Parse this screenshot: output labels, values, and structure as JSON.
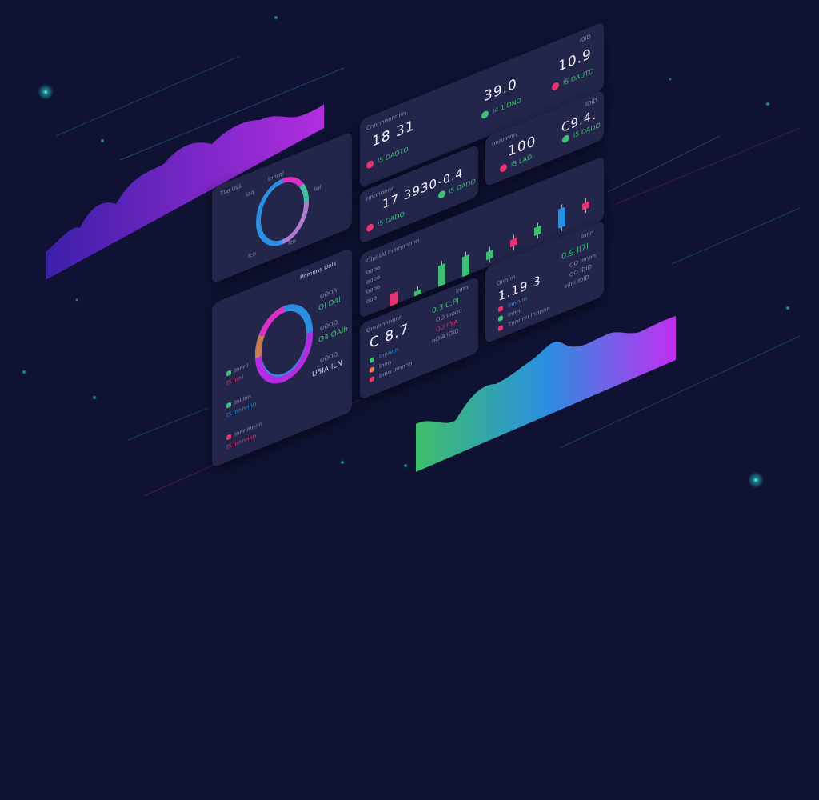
{
  "colors": {
    "background": "#0f1233",
    "panel": "#23254a",
    "green": "#3fbf78",
    "pink": "#e9356f",
    "blue": "#2a8fe0",
    "purple": "#b12ee0"
  },
  "donut_panel": {
    "title": "Tlle ULL",
    "caption": "lnnrol",
    "labels": [
      "lao",
      "lol",
      "lco",
      "lzo"
    ]
  },
  "donut_panel2": {
    "title": "Pnmnns Unls",
    "right_labels": [
      "OOOR",
      "Ol D4l",
      "OOOO",
      "O4 OAlh",
      "OOOO",
      "U5lA lLN"
    ],
    "legend": [
      {
        "label": "lnnnl",
        "value": "l5 lnnl",
        "color": "#3fbf78",
        "value_color": "#e9356f"
      },
      {
        "label": "lnlllnn",
        "value": "l5 lnnnnnn",
        "color": "#3fbf78",
        "value_color": "#2a8fe0"
      },
      {
        "label": "lnnnlnnnn",
        "value": "l5 lnnnnnn",
        "color": "#e9356f",
        "value_color": "#e9356f"
      }
    ]
  },
  "kpi_top": {
    "label": "Cnnnnnnnnnn",
    "value1": "18 31",
    "sub1": "l5 DADTO",
    "value2": "39.0",
    "sub2": "l4 1 DNO",
    "value3": "10.9",
    "sub3": "l5 DAUTO",
    "corner": "l0lD"
  },
  "kpi_a": {
    "label": "nnnnnnnn",
    "value1": "17 3930",
    "sub1": "l5 DADO",
    "value2": "-0.4",
    "sub2": "l5 DADO"
  },
  "kpi_b": {
    "label": "nnnnnnn",
    "value1": "100",
    "sub1": "l5 LAD",
    "value2": "C9.4.",
    "sub2": "l5 DADO",
    "corner": "lDlD"
  },
  "candle_panel": {
    "title": "Olnl lAl lnlnnnnnnn",
    "axis": [
      "oooo",
      "oooo",
      "oooo",
      "ooo"
    ],
    "candles": [
      {
        "o": 40,
        "c": 75,
        "color": "#e9356f"
      },
      {
        "o": 52,
        "c": 58,
        "color": "#3fbf78"
      },
      {
        "o": 60,
        "c": 95,
        "color": "#3fbf78"
      },
      {
        "o": 62,
        "c": 92,
        "color": "#3fbf78"
      },
      {
        "o": 72,
        "c": 82,
        "color": "#3fbf78"
      },
      {
        "o": 78,
        "c": 88,
        "color": "#e9356f"
      },
      {
        "o": 82,
        "c": 92,
        "color": "#3fbf78"
      },
      {
        "o": 88,
        "c": 112,
        "color": "#2a8fe0"
      },
      {
        "o": 96,
        "c": 104,
        "color": "#e9356f"
      }
    ]
  },
  "panel_c": {
    "label": "Onnnnnnnnn",
    "value": "C 8.7",
    "corner": "lnnn",
    "right": [
      "0.3 0.Pl",
      "OO lnoon",
      "OO lDlA",
      "nOlA lDlD"
    ],
    "legend": [
      {
        "label": "lnnnnn",
        "color": "#3fbf78"
      },
      {
        "label": "lnnn",
        "color": "#f07a3a"
      },
      {
        "label": "lnnn lnnnnn",
        "color": "#e9356f"
      }
    ]
  },
  "panel_d": {
    "label": "Onnnn",
    "value": "1.19 3",
    "corner": "lnnn",
    "right": [
      "0.9 ll7l",
      "OO lnnnn",
      "OO lDlD",
      "nlnl lDlD"
    ],
    "legend": [
      {
        "label": "lnnnnn",
        "color": "#e9356f"
      },
      {
        "label": "lnnn",
        "color": "#3fbf78"
      },
      {
        "label": "Tnnnnn lnnnnn",
        "color": "#e9356f"
      }
    ]
  }
}
